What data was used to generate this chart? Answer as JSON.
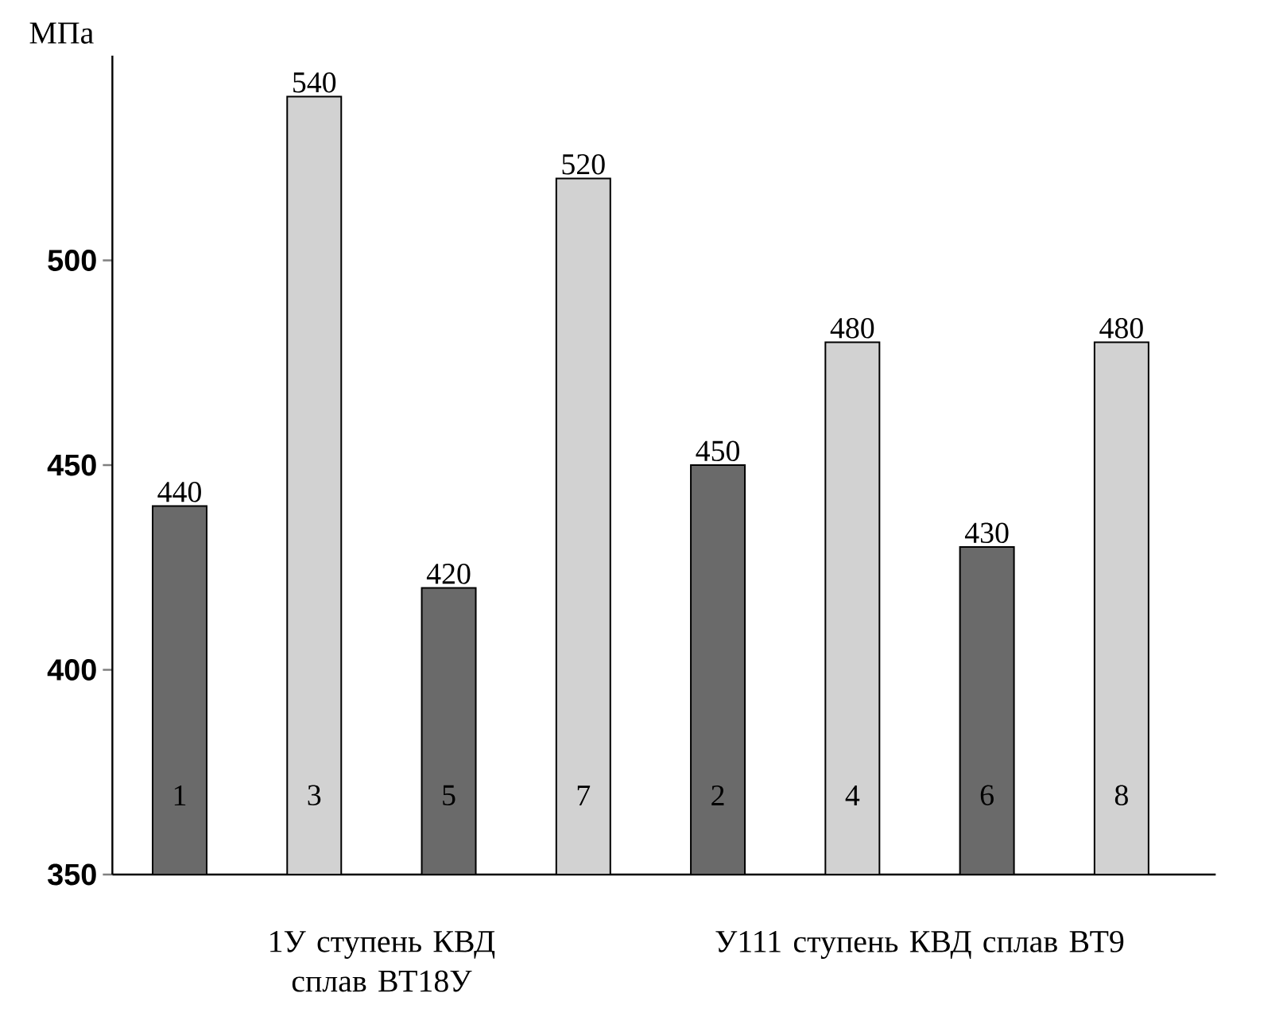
{
  "chart_data": {
    "type": "bar",
    "ylabel": "МПа",
    "categories": [
      "1",
      "3",
      "5",
      "7",
      "2",
      "4",
      "6",
      "8"
    ],
    "values": [
      440,
      540,
      420,
      520,
      450,
      480,
      430,
      480
    ],
    "colors": [
      "#6a6a6a",
      "#d2d2d2",
      "#6a6a6a",
      "#d2d2d2",
      "#6a6a6a",
      "#d2d2d2",
      "#6a6a6a",
      "#d2d2d2"
    ],
    "ylim": [
      350,
      550
    ],
    "yticks": [
      350,
      400,
      450,
      500
    ],
    "data_labels": true,
    "annotations": [
      "1У ступень КВД сплав ВТ18У",
      "У111 ступень КВД сплав ВТ9"
    ]
  }
}
